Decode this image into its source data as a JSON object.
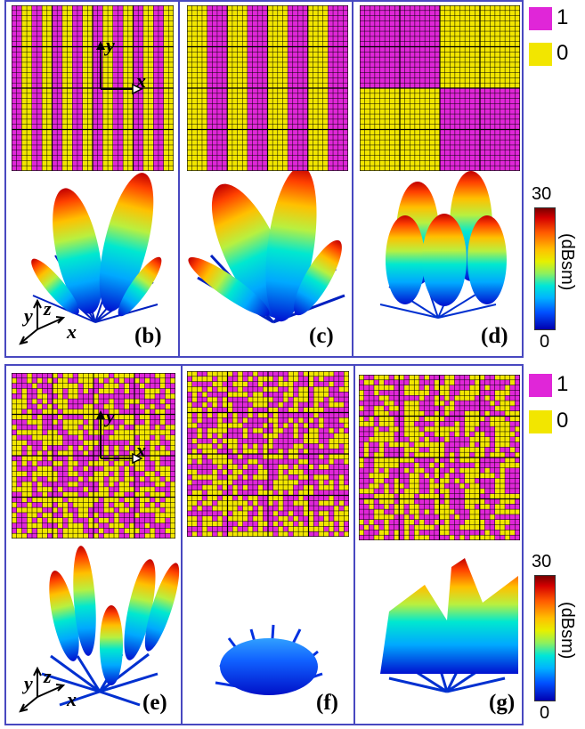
{
  "colors": {
    "state_one": "#e026d8",
    "state_zero": "#f2e600",
    "frame": "#4848c0"
  },
  "legend": {
    "one": "1",
    "zero": "0"
  },
  "colorbar": {
    "max": "30",
    "min": "0",
    "unit": "(dBsm)"
  },
  "axes": {
    "x": "x",
    "y": "y",
    "z": "z"
  },
  "panel_labels": {
    "b": "(b)",
    "c": "(c)",
    "d": "(d)",
    "e": "(e)",
    "f": "(f)",
    "g": "(g)"
  },
  "coding_patterns": {
    "b": "stripes-period-2",
    "c": "stripes-period-4",
    "d": "checkerboard-2x2",
    "e": "random",
    "f": "random",
    "g": "random-striped"
  }
}
